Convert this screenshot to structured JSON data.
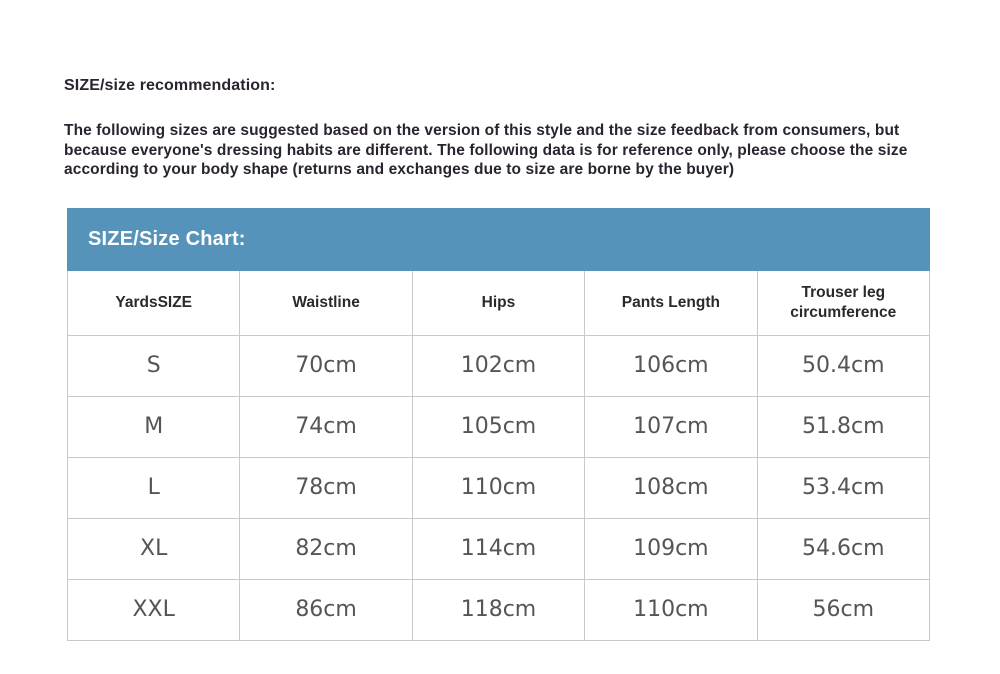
{
  "page": {
    "heading": "SIZE/size recommendation:",
    "intro": "The following sizes are suggested based on the version of this style and the size feedback from consumers, but because everyone's dressing habits are different. The following data is for reference only, please choose the size according to your body shape (returns and exchanges due to size are borne by the buyer)"
  },
  "size_chart": {
    "title": "SIZE/Size Chart:",
    "accent_color": "#5593bb",
    "border_color": "#c9c9c9",
    "header_text_color": "#2a2a2a",
    "cell_text_color": "#555555",
    "columns": [
      "YardsSIZE",
      "Waistline",
      "Hips",
      "Pants Length",
      "Trouser leg circumference"
    ],
    "rows": [
      [
        "S",
        "70cm",
        "102cm",
        "106cm",
        "50.4cm"
      ],
      [
        "M",
        "74cm",
        "105cm",
        "107cm",
        "51.8cm"
      ],
      [
        "L",
        "78cm",
        "110cm",
        "108cm",
        "53.4cm"
      ],
      [
        "XL",
        "82cm",
        "114cm",
        "109cm",
        "54.6cm"
      ],
      [
        "XXL",
        "86cm",
        "118cm",
        "110cm",
        "56cm"
      ]
    ]
  }
}
